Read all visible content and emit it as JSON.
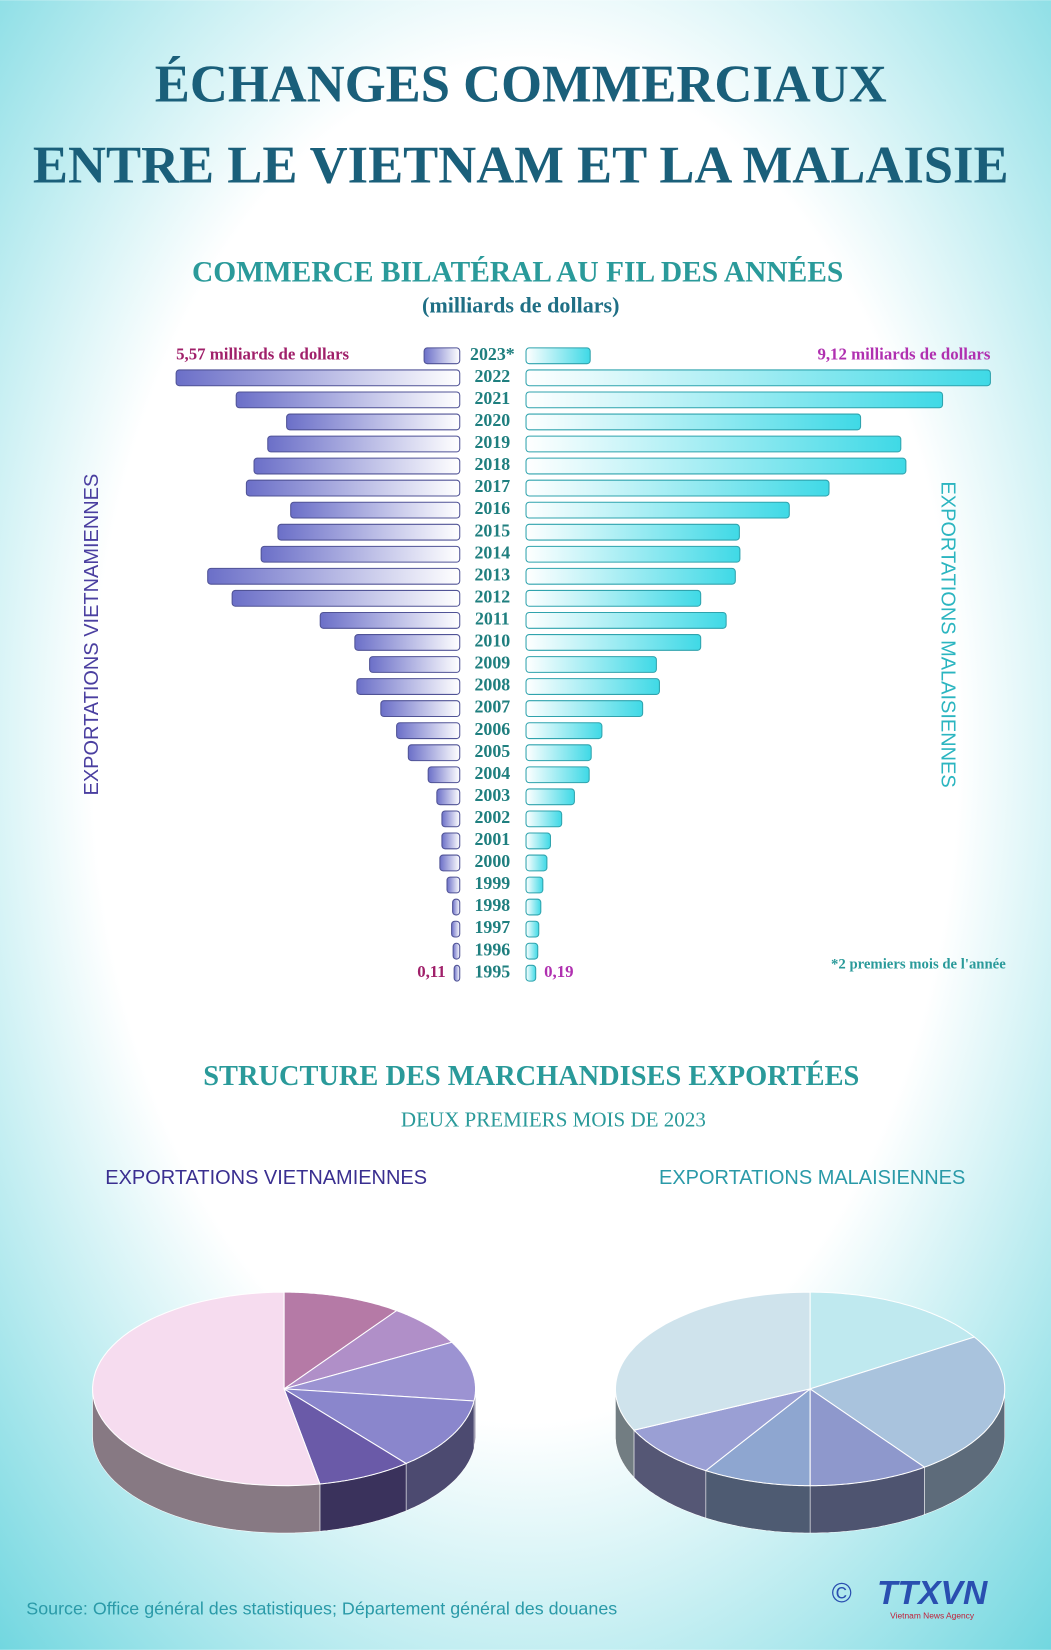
{
  "title": [
    "ÉCHANGES COMMERCIAUX",
    "ENTRE LE VIETNAM ET LA MALAISIE"
  ],
  "section": {
    "title": "STRUCTURE DES MARCHANDISES EXPORTÉES",
    "subtitle": "DEUX PREMIERS MOIS DE 2023"
  },
  "source": "Source: Office général des statistiques; Département général des douanes",
  "copyright": "©",
  "logo": "TTXVN",
  "logo_sub": "Vietnam News Agency",
  "chart_data": [
    {
      "type": "butterfly",
      "title": "COMMERCE BILATÉRAL AU FIL DES ANNÉES",
      "subtitle": "(milliards de dollars)",
      "categories": [
        "2023*",
        "2022",
        "2021",
        "2020",
        "2019",
        "2018",
        "2017",
        "2016",
        "2015",
        "2014",
        "2013",
        "2012",
        "2011",
        "2010",
        "2009",
        "2008",
        "2007",
        "2006",
        "2005",
        "2004",
        "2003",
        "2002",
        "2001",
        "2000",
        "1999",
        "1998",
        "1997",
        "1996",
        "1995"
      ],
      "series": [
        {
          "name": "EXPORTATIONS VIETNAMIENNES",
          "color": "#6b6fc8",
          "values": [
            0.7,
            5.57,
            4.39,
            3.4,
            3.77,
            4.04,
            4.19,
            3.32,
            3.57,
            3.9,
            4.95,
            4.47,
            2.74,
            2.06,
            1.77,
            2.02,
            1.55,
            1.24,
            1.01,
            0.62,
            0.45,
            0.35,
            0.35,
            0.39,
            0.25,
            0.14,
            0.16,
            0.13,
            0.11
          ],
          "value_labels": [
            null,
            "5,57 milliards de dollars",
            null,
            null,
            null,
            null,
            null,
            null,
            null,
            null,
            null,
            null,
            null,
            null,
            null,
            null,
            null,
            null,
            null,
            null,
            null,
            null,
            null,
            null,
            null,
            null,
            null,
            null,
            "0,11"
          ]
        },
        {
          "name": "EXPORTATIONS MALAISIENNES",
          "color": "#3fd9e6",
          "values": [
            1.26,
            9.12,
            8.18,
            6.57,
            7.36,
            7.46,
            5.95,
            5.17,
            4.19,
            4.2,
            4.11,
            3.43,
            3.93,
            3.43,
            2.56,
            2.62,
            2.29,
            1.49,
            1.28,
            1.24,
            0.95,
            0.7,
            0.48,
            0.41,
            0.33,
            0.29,
            0.25,
            0.23,
            0.19
          ],
          "value_labels": [
            null,
            "9,12 milliards de dollars",
            null,
            null,
            null,
            null,
            null,
            null,
            null,
            null,
            null,
            null,
            null,
            null,
            null,
            null,
            null,
            null,
            null,
            null,
            null,
            null,
            null,
            null,
            null,
            null,
            null,
            null,
            "0,19"
          ]
        }
      ],
      "note": "*2  premiers mois de l'année"
    },
    {
      "type": "pie",
      "title": "EXPORTATIONS VIETNAMIENNES",
      "values": [
        10,
        7,
        10,
        12,
        8,
        53
      ],
      "colors": [
        "#b57aa6",
        "#b08fc8",
        "#9c93d2",
        "#8a86cc",
        "#6a5aa8",
        "#f6dcef"
      ]
    },
    {
      "type": "pie",
      "title": "EXPORTATIONS MALAISIENNES",
      "values": [
        16,
        24,
        10,
        9,
        9,
        32
      ],
      "colors": [
        "#bfe9ef",
        "#a9c3dd",
        "#8e98cc",
        "#8ea6d0",
        "#9a9fd4",
        "#cfe3ec"
      ]
    }
  ]
}
